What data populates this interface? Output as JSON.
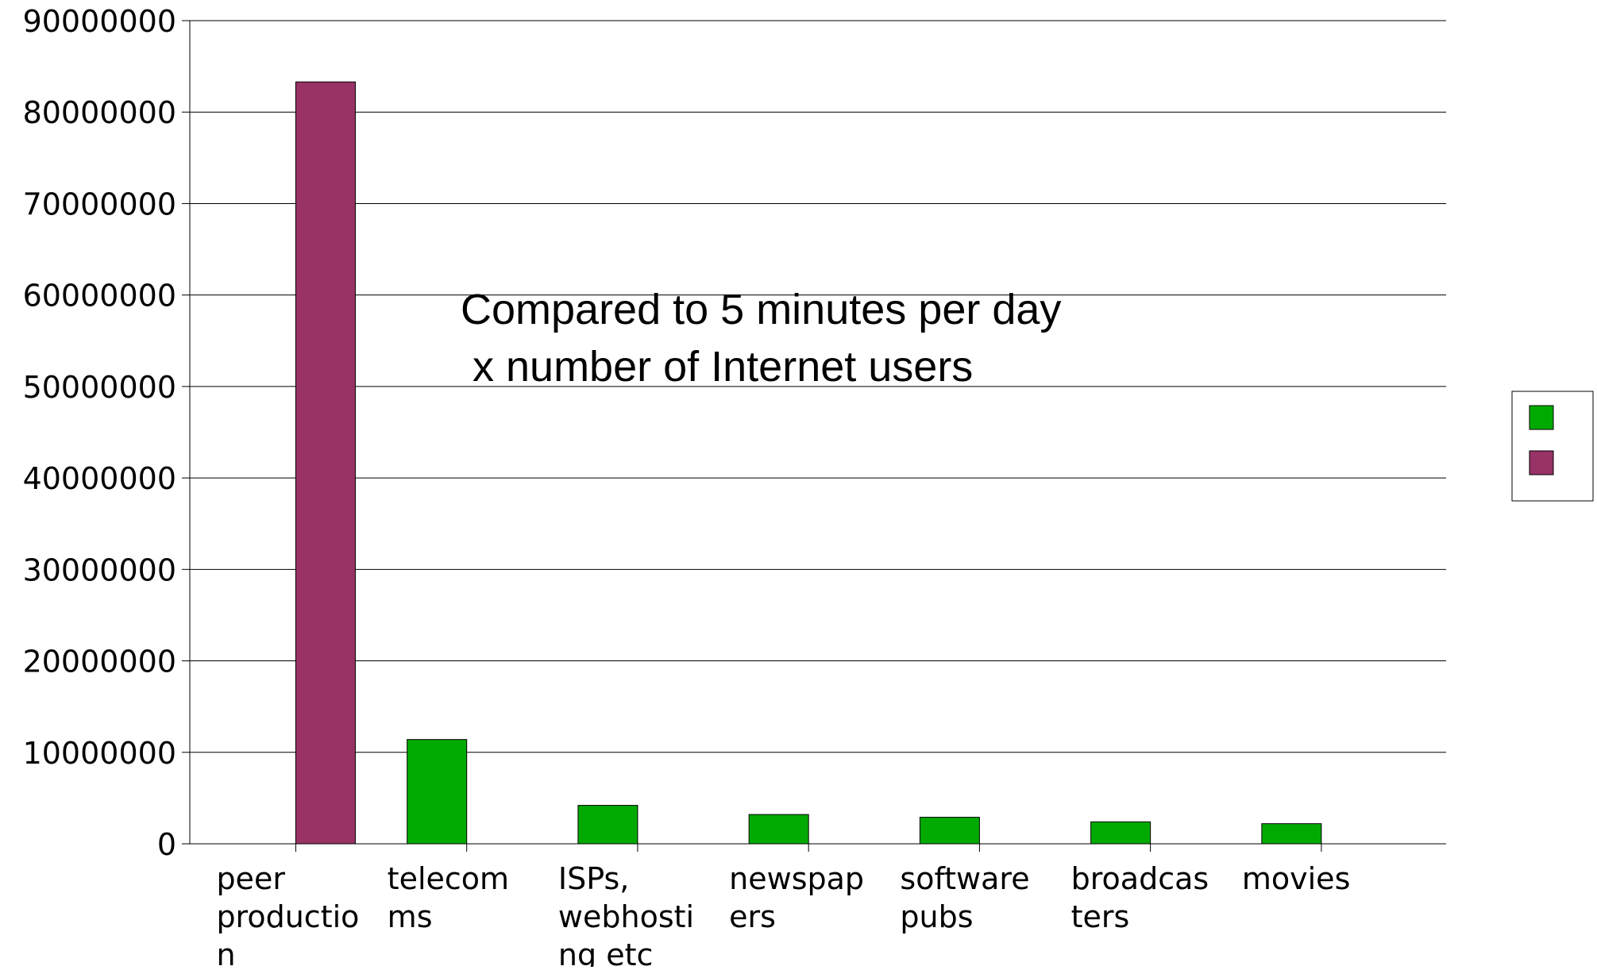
{
  "chart_data": {
    "type": "bar",
    "categories": [
      "peer\nproductio\nn",
      "telecom\nms",
      "ISPs,\nwebhosti\nng etc",
      "newspap\ners",
      "software\npubs",
      "broadcas\nters",
      "movies"
    ],
    "series": [
      {
        "color": "#00aa00",
        "values": [
          0,
          11400000,
          4200000,
          3200000,
          2900000,
          2400000,
          2200000
        ]
      },
      {
        "color": "#993366",
        "values": [
          83300000,
          0,
          0,
          0,
          0,
          0,
          0
        ]
      }
    ],
    "y_tick_labels": [
      "0",
      "10000000",
      "20000000",
      "30000000",
      "40000000",
      "50000000",
      "60000000",
      "70000000",
      "80000000",
      "90000000"
    ],
    "ylim": [
      0,
      90000000
    ],
    "grid": true,
    "legend": {
      "placement": "right"
    },
    "annotation": [
      "Compared to 5 minutes per day",
      " x number of Internet users"
    ],
    "title": "",
    "xlabel": "",
    "ylabel": ""
  }
}
